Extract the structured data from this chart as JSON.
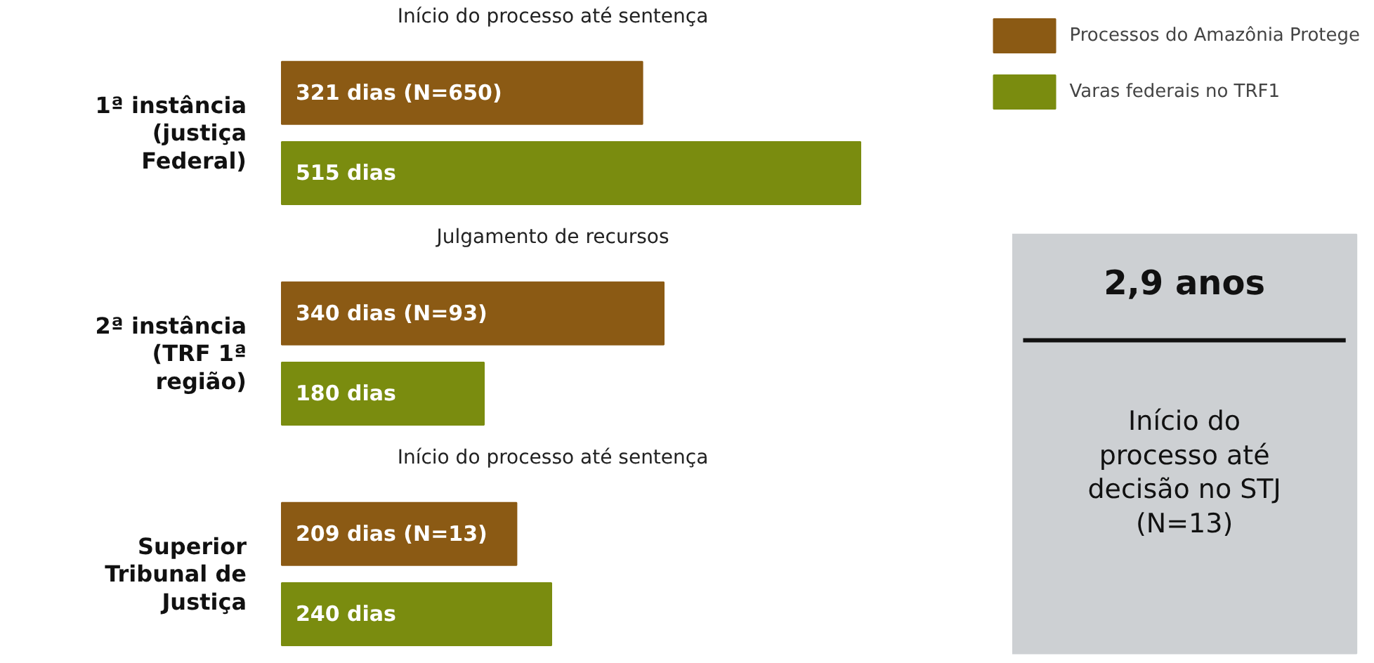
{
  "chart_data": [
    {
      "type": "bar",
      "orientation": "horizontal",
      "title": "Início do processo até sentença",
      "ylabel": "1ª instância (justiça Federal)",
      "categories": [
        null
      ],
      "legend": "top right",
      "series": [
        {
          "name": "Processos do Amazônia Protege",
          "color": "#8b5a14",
          "values": [
            321
          ],
          "value_labels": [
            "321 dias (N=650)"
          ]
        },
        {
          "name": "Varas federais no TRF1",
          "color": "#7a8c0f",
          "values": [
            515
          ],
          "value_labels": [
            "515 dias"
          ]
        }
      ]
    },
    {
      "type": "bar",
      "orientation": "horizontal",
      "title": "Julgamento de recursos",
      "ylabel": "2ª instância (TRF 1ª região)",
      "categories": [
        null
      ],
      "series": [
        {
          "color": "#8b5a14",
          "values": [
            340
          ],
          "value_labels": [
            "340 dias (N=93)"
          ]
        },
        {
          "color": "#7a8c0f",
          "values": [
            180
          ],
          "value_labels": [
            "180 dias"
          ]
        }
      ]
    },
    {
      "type": "bar",
      "orientation": "horizontal",
      "title": "Início do processo até sentença",
      "ylabel": "Superior Tribunal de Justiça",
      "categories": [
        null
      ],
      "series": [
        {
          "color": "#8b5a14",
          "values": [
            209
          ],
          "value_labels": [
            "209 dias (N=13)"
          ]
        },
        {
          "color": "#7a8c0f",
          "values": [
            240
          ],
          "value_labels": [
            "240 dias"
          ]
        }
      ]
    },
    {
      "type": "other",
      "title": "2,9 anos",
      "annotations": [
        "Início do processo até decisão no STJ (N=13)"
      ]
    }
  ]
}
